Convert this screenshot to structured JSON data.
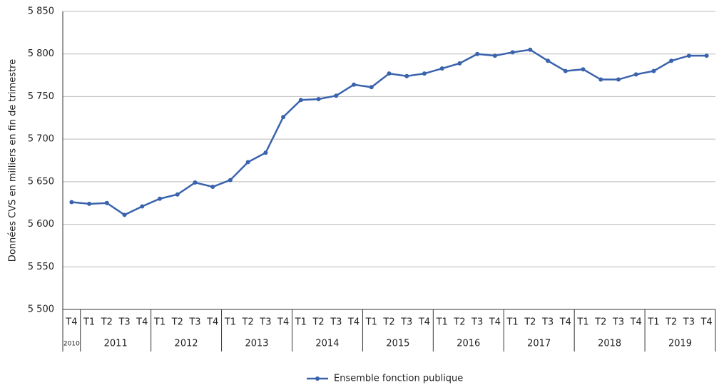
{
  "chart_data": {
    "type": "line",
    "y_label": "Données CVS en milliers en fin de trimestre",
    "years": [
      {
        "year": "2010",
        "quarters": [
          "T4"
        ]
      },
      {
        "year": "2011",
        "quarters": [
          "T1",
          "T2",
          "T3",
          "T4"
        ]
      },
      {
        "year": "2012",
        "quarters": [
          "T1",
          "T2",
          "T3",
          "T4"
        ]
      },
      {
        "year": "2013",
        "quarters": [
          "T1",
          "T2",
          "T3",
          "T4"
        ]
      },
      {
        "year": "2014",
        "quarters": [
          "T1",
          "T2",
          "T3",
          "T4"
        ]
      },
      {
        "year": "2015",
        "quarters": [
          "T1",
          "T2",
          "T3",
          "T4"
        ]
      },
      {
        "year": "2016",
        "quarters": [
          "T1",
          "T2",
          "T3",
          "T4"
        ]
      },
      {
        "year": "2017",
        "quarters": [
          "T1",
          "T2",
          "T3",
          "T4"
        ]
      },
      {
        "year": "2018",
        "quarters": [
          "T1",
          "T2",
          "T3",
          "T4"
        ]
      },
      {
        "year": "2019",
        "quarters": [
          "T1",
          "T2",
          "T3",
          "T4"
        ]
      }
    ],
    "series": [
      {
        "name": "Ensemble fonction publique",
        "color": "#3a63ad",
        "values": [
          5626,
          5624,
          5625,
          5611,
          5621,
          5630,
          5635,
          5649,
          5644,
          5652,
          5673,
          5684,
          5726,
          5746,
          5747,
          5751,
          5764,
          5761,
          5777,
          5774,
          5777,
          5783,
          5789,
          5800,
          5798,
          5802,
          5805,
          5792,
          5780,
          5782,
          5770,
          5770,
          5776,
          5780,
          5792,
          5798,
          5798
        ]
      }
    ],
    "ylim": [
      5500,
      5850
    ],
    "yticks": [
      {
        "value": 5500,
        "label": "5 500"
      },
      {
        "value": 5550,
        "label": "5 550"
      },
      {
        "value": 5600,
        "label": "5 600"
      },
      {
        "value": 5650,
        "label": "5 650"
      },
      {
        "value": 5700,
        "label": "5 700"
      },
      {
        "value": 5750,
        "label": "5 750"
      },
      {
        "value": 5800,
        "label": "5 800"
      },
      {
        "value": 5850,
        "label": "5 850"
      }
    ],
    "grid": true,
    "legend": "bottom"
  }
}
